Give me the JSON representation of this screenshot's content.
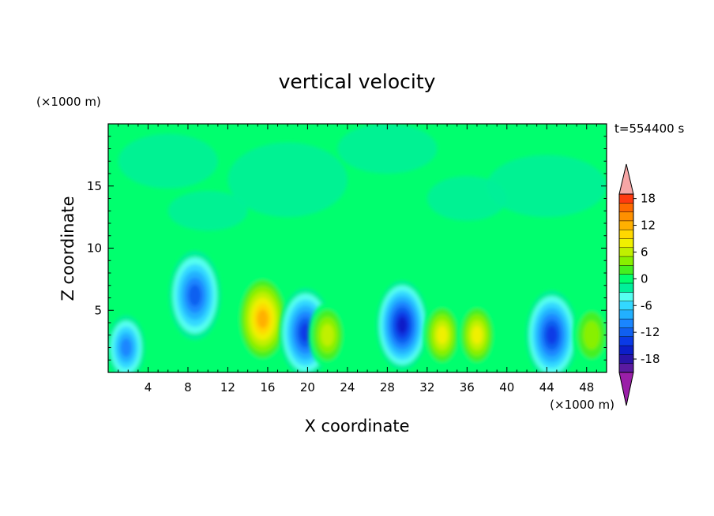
{
  "chart_data": {
    "type": "heatmap",
    "title": "vertical velocity",
    "xlabel": "X coordinate",
    "ylabel": "Z coordinate",
    "x_unit": "(×1000 m)",
    "y_unit": "(×1000 m)",
    "time_label": "t=554400 s",
    "xlim": [
      0,
      50
    ],
    "ylim": [
      0,
      20
    ],
    "x_ticks": [
      4,
      8,
      12,
      16,
      20,
      24,
      28,
      32,
      36,
      40,
      44,
      48
    ],
    "y_ticks": [
      5,
      10,
      15
    ],
    "colorbar": {
      "min": -20,
      "max": 20,
      "step": 2,
      "labeled_values": [
        -18,
        -12,
        -6,
        0,
        6,
        12,
        18
      ],
      "extend": "both",
      "colors": [
        "#9a1fa8",
        "#5b1aa0",
        "#2a14a8",
        "#0c1ec8",
        "#0a3ae6",
        "#1060f0",
        "#1a86ff",
        "#22b0ff",
        "#33d8ff",
        "#55fff0",
        "#00f09a",
        "#00ff6e",
        "#44f020",
        "#88f000",
        "#c0f000",
        "#f0f000",
        "#ffd800",
        "#ffb000",
        "#ff9000",
        "#ff6a00",
        "#ff3a10",
        "#f6a6a6"
      ]
    },
    "features": [
      {
        "x": 1.8,
        "z": 2.0,
        "w": -10
      },
      {
        "x": 8.7,
        "z": 6.2,
        "w": -11
      },
      {
        "x": 15.5,
        "z": 4.3,
        "w": 13
      },
      {
        "x": 19.8,
        "z": 3.2,
        "w": -14
      },
      {
        "x": 22.0,
        "z": 3.0,
        "w": 8
      },
      {
        "x": 29.5,
        "z": 3.8,
        "w": -15
      },
      {
        "x": 33.5,
        "z": 3.0,
        "w": 9
      },
      {
        "x": 37.0,
        "z": 3.0,
        "w": 10
      },
      {
        "x": 44.5,
        "z": 3.0,
        "w": -13
      },
      {
        "x": 48.5,
        "z": 3.0,
        "w": 5
      }
    ]
  }
}
